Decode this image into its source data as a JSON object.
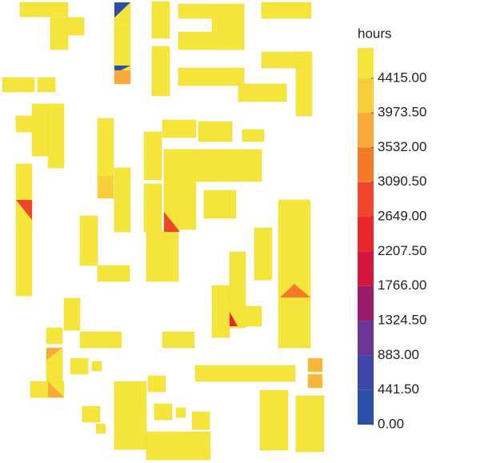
{
  "legend": {
    "title": "hours",
    "lim": [
      0,
      4800
    ],
    "ticks": [
      {
        "value": 0,
        "label": "0.00"
      },
      {
        "value": 441.5,
        "label": "441.50"
      },
      {
        "value": 883,
        "label": "883.00"
      },
      {
        "value": 1324.5,
        "label": "1324.50"
      },
      {
        "value": 1766,
        "label": "1766.00"
      },
      {
        "value": 2207.5,
        "label": "2207.50"
      },
      {
        "value": 2649,
        "label": "2649.00"
      },
      {
        "value": 3090.5,
        "label": "3090.50"
      },
      {
        "value": 3532,
        "label": "3532.00"
      },
      {
        "value": 3973.5,
        "label": "3973.50"
      },
      {
        "value": 4415,
        "label": "4415.00"
      }
    ],
    "colors": [
      "#2a4fa8",
      "#3b46a8",
      "#6a3596",
      "#9c1a6b",
      "#d4163d",
      "#e8262a",
      "#f0452a",
      "#f47a2a",
      "#f8a93a",
      "#f7cf3c",
      "#f5e43a"
    ]
  }
}
